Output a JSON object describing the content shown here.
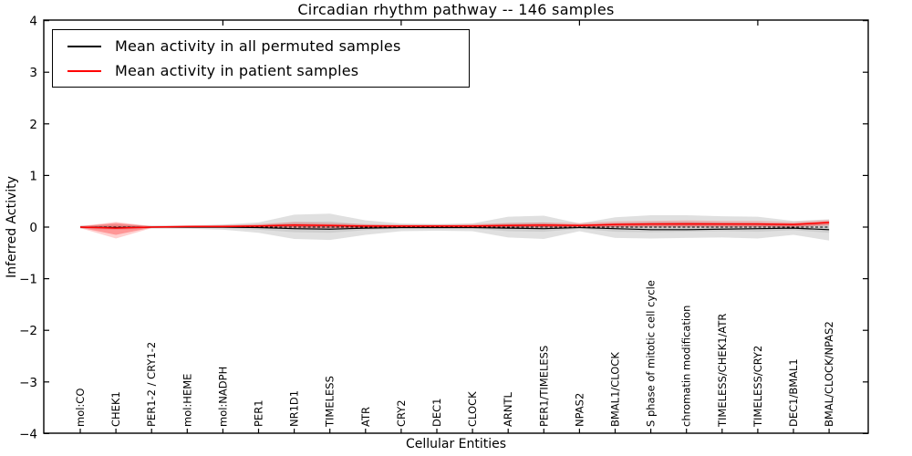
{
  "figure": {
    "background": "#ffffff",
    "frame_color": "#000000"
  },
  "chart_data": {
    "type": "line",
    "title": "Circadian rhythm pathway -- 146 samples",
    "xlabel": "Cellular Entities",
    "ylabel": "Inferred Activity",
    "ylim": [
      -4,
      4
    ],
    "yticks": [
      4,
      3,
      2,
      1,
      0,
      -1,
      -2,
      -3,
      -4
    ],
    "grid": false,
    "legend_position": "upper left",
    "legend": [
      {
        "label": "Mean activity in all permuted samples",
        "color": "#000000"
      },
      {
        "label": "Mean activity in patient samples",
        "color": "#ff0000"
      }
    ],
    "categories": [
      "mol:CO",
      "CHEK1",
      "PER1-2 / CRY1-2",
      "mol:HEME",
      "mol:NADPH",
      "PER1",
      "NR1D1",
      "TIMELESS",
      "ATR",
      "CRY2",
      "DEC1",
      "CLOCK",
      "ARNTL",
      "PER1/TIMELESS",
      "NPAS2",
      "BMAL1/CLOCK",
      "S phase of mitotic cell cycle",
      "chromatin modification",
      "TIMELESS/CHEK1/ATR",
      "TIMELESS/CRY2",
      "DEC1/BMAL1",
      "BMAL/CLOCK/NPAS2"
    ],
    "series": [
      {
        "name": "zero-reference-line",
        "style": "dashed",
        "color": "#000000",
        "width": 1,
        "values": [
          0,
          0,
          0,
          0,
          0,
          0,
          0,
          0,
          0,
          0,
          0,
          0,
          0,
          0,
          0,
          0,
          0,
          0,
          0,
          0,
          0,
          0
        ]
      },
      {
        "name": "mean-permuted",
        "style": "solid",
        "color": "#000000",
        "width": 1.2,
        "values": [
          0.0,
          -0.01,
          0.0,
          0.0,
          0.0,
          -0.01,
          -0.03,
          -0.04,
          -0.02,
          -0.01,
          -0.01,
          -0.01,
          -0.02,
          -0.03,
          -0.01,
          -0.03,
          -0.05,
          -0.05,
          -0.04,
          -0.03,
          -0.02,
          -0.05
        ]
      },
      {
        "name": "mean-patient",
        "style": "solid",
        "color": "#ff0000",
        "width": 1.5,
        "values": [
          0.0,
          -0.02,
          0.0,
          0.01,
          0.01,
          0.02,
          0.04,
          0.03,
          0.02,
          0.02,
          0.02,
          0.02,
          0.03,
          0.04,
          0.03,
          0.05,
          0.06,
          0.06,
          0.06,
          0.06,
          0.05,
          0.09
        ]
      }
    ],
    "bands": [
      {
        "name": "permuted-outer",
        "color": "#000000",
        "opacity": 0.12,
        "upper": [
          0.03,
          0.05,
          0.03,
          0.03,
          0.05,
          0.09,
          0.24,
          0.26,
          0.13,
          0.07,
          0.06,
          0.07,
          0.2,
          0.22,
          0.07,
          0.19,
          0.23,
          0.23,
          0.21,
          0.2,
          0.12,
          0.15
        ],
        "lower": [
          -0.03,
          -0.05,
          -0.03,
          -0.03,
          -0.05,
          -0.11,
          -0.23,
          -0.25,
          -0.15,
          -0.08,
          -0.07,
          -0.08,
          -0.2,
          -0.23,
          -0.08,
          -0.21,
          -0.22,
          -0.21,
          -0.2,
          -0.22,
          -0.15,
          -0.26
        ]
      },
      {
        "name": "permuted-inner",
        "color": "#000000",
        "opacity": 0.08,
        "upper": [
          0.01,
          0.02,
          0.01,
          0.01,
          0.02,
          0.04,
          0.1,
          0.11,
          0.05,
          0.03,
          0.03,
          0.03,
          0.08,
          0.09,
          0.03,
          0.08,
          0.1,
          0.1,
          0.09,
          0.08,
          0.05,
          0.06
        ],
        "lower": [
          -0.01,
          -0.02,
          -0.01,
          -0.01,
          -0.02,
          -0.05,
          -0.1,
          -0.11,
          -0.06,
          -0.03,
          -0.03,
          -0.03,
          -0.08,
          -0.09,
          -0.03,
          -0.09,
          -0.1,
          -0.09,
          -0.08,
          -0.09,
          -0.06,
          -0.11
        ]
      },
      {
        "name": "patient-outer",
        "color": "#ff0000",
        "opacity": 0.18,
        "upper": [
          0.02,
          0.1,
          0.02,
          0.03,
          0.04,
          0.06,
          0.1,
          0.08,
          0.06,
          0.05,
          0.05,
          0.06,
          0.08,
          0.09,
          0.08,
          0.11,
          0.12,
          0.13,
          0.12,
          0.12,
          0.1,
          0.14
        ],
        "lower": [
          -0.02,
          -0.22,
          -0.02,
          -0.02,
          -0.02,
          -0.02,
          -0.02,
          -0.02,
          -0.02,
          -0.02,
          -0.02,
          -0.02,
          -0.01,
          -0.01,
          -0.01,
          0.0,
          0.0,
          0.0,
          0.0,
          0.0,
          0.0,
          0.03
        ]
      },
      {
        "name": "patient-inner",
        "color": "#ff0000",
        "opacity": 0.28,
        "upper": [
          0.01,
          0.08,
          0.01,
          0.02,
          0.03,
          0.04,
          0.06,
          0.05,
          0.04,
          0.03,
          0.03,
          0.04,
          0.05,
          0.06,
          0.05,
          0.07,
          0.08,
          0.09,
          0.08,
          0.08,
          0.07,
          0.11
        ],
        "lower": [
          -0.01,
          -0.15,
          -0.01,
          -0.01,
          -0.01,
          -0.01,
          0.0,
          -0.01,
          -0.01,
          -0.01,
          -0.01,
          -0.01,
          0.0,
          0.0,
          0.0,
          0.01,
          0.02,
          0.02,
          0.02,
          0.02,
          0.01,
          0.05
        ]
      }
    ],
    "top_ticks_at_category_index": [
      4,
      9,
      14,
      19
    ]
  }
}
